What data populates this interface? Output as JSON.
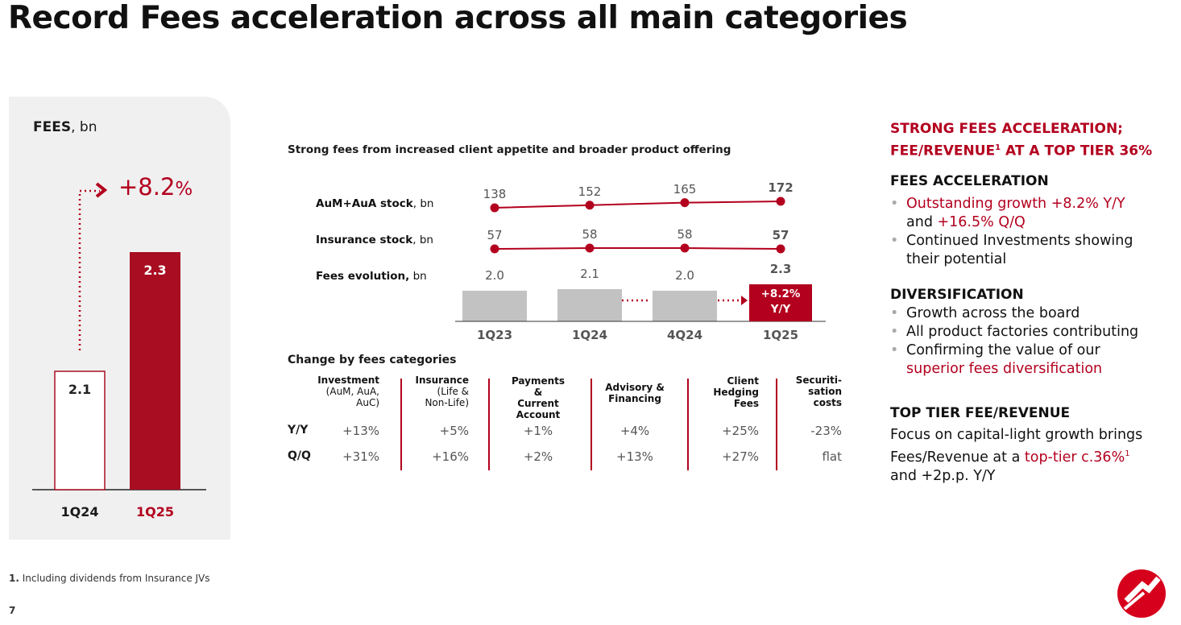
{
  "title": "Record Fees acceleration across all main categories",
  "left_chart": {
    "label_bold": "FEES",
    "label_unit": ", bn",
    "growth": "+8.2",
    "growth_pct": "%",
    "bar_1q24": "2.1",
    "bar_1q25": "2.3",
    "x_1q24": "1Q24",
    "x_1q25": "1Q25"
  },
  "chart_data": {
    "type": "line",
    "title": "Strong fees from increased client appetite and broader product offering",
    "categories": [
      "1Q23",
      "1Q24",
      "4Q24",
      "1Q25"
    ],
    "series": [
      {
        "name": "AuM+AuA stock, bn",
        "name_bold": "AuM+AuA stock",
        "unit": ", bn",
        "values": [
          138,
          152,
          165,
          172
        ],
        "labels": [
          "138",
          "152",
          "165",
          "172"
        ]
      },
      {
        "name": "Insurance stock, bn",
        "name_bold": "Insurance stock",
        "unit": ", bn",
        "values": [
          57,
          58,
          58,
          57
        ],
        "labels": [
          "57",
          "58",
          "58",
          "57"
        ]
      },
      {
        "name": "Fees evolution, bn",
        "name_bold": "Fees evolution,",
        "unit": " bn",
        "type": "bar",
        "values": [
          2.0,
          2.1,
          2.0,
          2.3
        ],
        "labels": [
          "2.0",
          "2.1",
          "2.0",
          "2.3"
        ]
      }
    ],
    "badge": [
      "+8.2%",
      "Y/Y"
    ]
  },
  "table": {
    "title": "Change by fees categories",
    "headers": [
      [
        "Investment",
        "(AuM, AuA,",
        "AuC)"
      ],
      [
        "Insurance",
        "(Life &",
        "Non-Life)"
      ],
      [
        "Payments &",
        "Current",
        "Account"
      ],
      [
        "Advisory &",
        "Financing"
      ],
      [
        "Client",
        "Hedging",
        "Fees"
      ],
      [
        "Securiti-",
        "sation",
        "costs"
      ]
    ],
    "rows": [
      {
        "label": "Y/Y",
        "values": [
          "+13%",
          "+5%",
          "+1%",
          "+4%",
          "+25%",
          "-23%"
        ]
      },
      {
        "label": "Q/Q",
        "values": [
          "+31%",
          "+16%",
          "+2%",
          "+13%",
          "+27%",
          "flat"
        ]
      }
    ]
  },
  "right": {
    "heading_line1": "STRONG FEES ACCELERATION;",
    "heading_line2a": "FEE/REVENUE",
    "heading_sup": "1",
    "heading_line2b": " AT A TOP TIER 36%",
    "s1_title": "FEES ACCELERATION",
    "s1_b1_red": "Outstanding growth +8.2% Y/Y",
    "s1_b1_and": "and ",
    "s1_b1_red2": "+16.5% Q/Q",
    "s1_b2a": "Continued Investments showing",
    "s1_b2b": "their potential",
    "s2_title": "DIVERSIFICATION",
    "s2_b1": "Growth across the board",
    "s2_b2": "All product factories contributing",
    "s2_b3a": "Confirming the value of our",
    "s2_b3b": "superior fees diversification",
    "s3_title": "TOP TIER FEE/REVENUE",
    "s3_l1": "Focus on capital-light growth brings",
    "s3_l2a": "Fees/Revenue at a ",
    "s3_l2red": "top-tier c.36%",
    "s3_sup": "1",
    "s3_l3": "and +2p.p. Y/Y"
  },
  "footnote_num": "1.",
  "footnote_text": " Including dividends from Insurance JVs",
  "page_number": "7",
  "colors": {
    "accent": "#b3001e",
    "gray_bar": "#c2c2c2",
    "panel": "#f0f0f0"
  }
}
